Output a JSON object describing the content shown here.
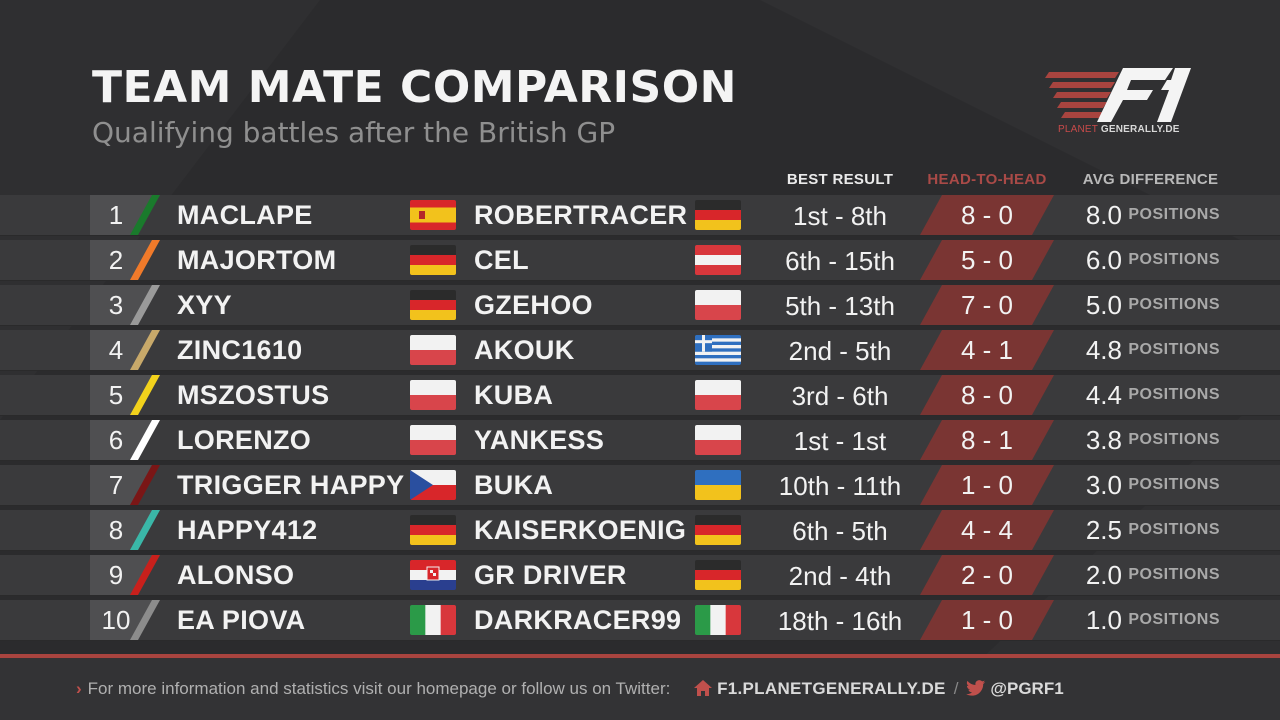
{
  "header": {
    "title": "TEAM MATE COMPARISON",
    "subtitle": "Qualifying battles after the British GP"
  },
  "logo": {
    "mark": "F1",
    "text_prefix": "PLANET",
    "text_main": "GENERALLY.DE",
    "icon": "f1-logo-icon"
  },
  "columns": {
    "best_result": "BEST RESULT",
    "head_to_head": "HEAD-TO-HEAD",
    "avg_difference": "AVG DIFFERENCE"
  },
  "unit_label": "POSITIONS",
  "rows": [
    {
      "pos": "1",
      "accent": "#1a7a2c",
      "driver1": "MACLAPE",
      "flag1": "spain",
      "driver2": "ROBERTRACER",
      "flag2": "germany",
      "best": "1st - 8th",
      "h2h": "8 - 0",
      "avg": "8.0"
    },
    {
      "pos": "2",
      "accent": "#f07a2a",
      "driver1": "MAJORTOM",
      "flag1": "germany",
      "driver2": "CEL",
      "flag2": "austria",
      "best": "6th - 15th",
      "h2h": "5 - 0",
      "avg": "6.0"
    },
    {
      "pos": "3",
      "accent": "#9a9a9a",
      "driver1": "XYY",
      "flag1": "germany",
      "driver2": "GZEHOO",
      "flag2": "poland",
      "best": "5th - 13th",
      "h2h": "7 - 0",
      "avg": "5.0"
    },
    {
      "pos": "4",
      "accent": "#c8a96a",
      "driver1": "ZINC1610",
      "flag1": "poland",
      "driver2": "AKOUK",
      "flag2": "greece",
      "best": "2nd - 5th",
      "h2h": "4 - 1",
      "avg": "4.8"
    },
    {
      "pos": "5",
      "accent": "#f2d21c",
      "driver1": "MSZOSTUS",
      "flag1": "poland",
      "driver2": "KUBA",
      "flag2": "poland",
      "best": "3rd - 6th",
      "h2h": "8 - 0",
      "avg": "4.4"
    },
    {
      "pos": "6",
      "accent": "#ffffff",
      "driver1": "LORENZO",
      "flag1": "poland",
      "driver2": "YANKESS",
      "flag2": "poland",
      "best": "1st - 1st",
      "h2h": "8 - 1",
      "avg": "3.8"
    },
    {
      "pos": "7",
      "accent": "#7a1616",
      "driver1": "TRIGGER HAPPY",
      "flag1": "czech",
      "driver2": "BUKA",
      "flag2": "ukraine",
      "best": "10th - 11th",
      "h2h": "1 - 0",
      "avg": "3.0"
    },
    {
      "pos": "8",
      "accent": "#3ab7a8",
      "driver1": "HAPPY412",
      "flag1": "germany",
      "driver2": "KAISERKOENIG",
      "flag2": "germany",
      "best": "6th - 5th",
      "h2h": "4 - 4",
      "avg": "2.5"
    },
    {
      "pos": "9",
      "accent": "#c8201c",
      "driver1": "ALONSO",
      "flag1": "croatia",
      "driver2": "GR DRIVER",
      "flag2": "germany",
      "best": "2nd - 4th",
      "h2h": "2 - 0",
      "avg": "2.0"
    },
    {
      "pos": "10",
      "accent": "#8c8c8c",
      "driver1": "EA PIOVA",
      "flag1": "italy",
      "driver2": "DARKRACER99",
      "flag2": "italy",
      "best": "18th - 16th",
      "h2h": "1 - 0",
      "avg": "1.0"
    }
  ],
  "footer": {
    "text": "For more information and statistics visit our homepage or follow us on Twitter:",
    "site": "F1.PLANETGENERALLY.DE",
    "separator": "/",
    "handle": "@PGRF1",
    "icons": [
      "chevron-right-icon",
      "home-icon",
      "twitter-icon"
    ]
  },
  "colors": {
    "background": "#2b2b2d",
    "row": "#3a3a3c",
    "position_box": "#4d4d4f",
    "h2h_bar": "#7a3533",
    "accent_red": "#a9443f"
  }
}
